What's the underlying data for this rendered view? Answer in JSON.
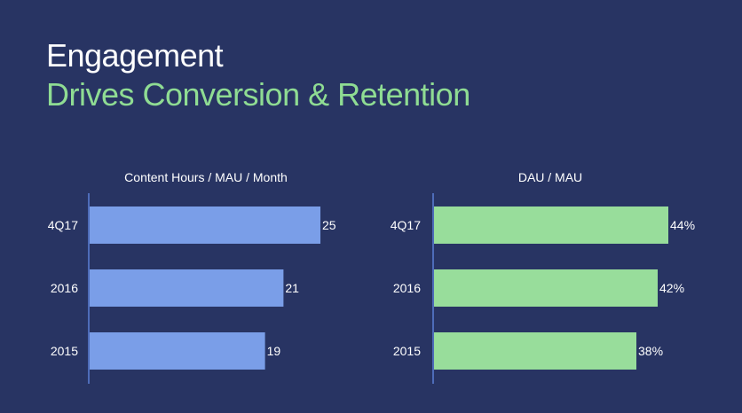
{
  "slide": {
    "title": "Engagement",
    "subtitle": "Drives Conversion & Retention"
  },
  "colors": {
    "background": "#283463",
    "subtitle": "#8fdc93",
    "left_bar": "#7a9ee8",
    "right_bar": "#98dd9b",
    "axis": "#5a7fd6"
  },
  "chart_data": [
    {
      "type": "bar",
      "orientation": "horizontal",
      "title": "Content Hours / MAU / Month",
      "categories": [
        "4Q17",
        "2016",
        "2015"
      ],
      "values": [
        25,
        21,
        19
      ],
      "value_labels": [
        "25",
        "21",
        "19"
      ],
      "xlim": [
        0,
        25
      ],
      "grid": false
    },
    {
      "type": "bar",
      "orientation": "horizontal",
      "title": "DAU / MAU",
      "categories": [
        "4Q17",
        "2016",
        "2015"
      ],
      "values": [
        44,
        42,
        38
      ],
      "value_labels": [
        "44%",
        "42%",
        "38%"
      ],
      "xlim": [
        0,
        44
      ],
      "grid": false
    }
  ]
}
